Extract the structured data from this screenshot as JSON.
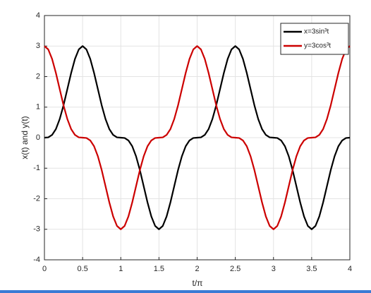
{
  "chart_data": {
    "type": "line",
    "xlabel": "t/π",
    "ylabel": "x(t) and y(t)",
    "x": [
      0,
      0.05,
      0.1,
      0.15,
      0.2,
      0.25,
      0.3,
      0.35,
      0.4,
      0.45,
      0.5,
      0.55,
      0.6,
      0.65,
      0.7,
      0.75,
      0.8,
      0.85,
      0.9,
      0.95,
      1,
      1.05,
      1.1,
      1.15,
      1.2,
      1.25,
      1.3,
      1.35,
      1.4,
      1.45,
      1.5,
      1.55,
      1.6,
      1.65,
      1.7,
      1.75,
      1.8,
      1.85,
      1.9,
      1.95,
      2,
      2.05,
      2.1,
      2.15,
      2.2,
      2.25,
      2.3,
      2.35,
      2.4,
      2.45,
      2.5,
      2.55,
      2.6,
      2.65,
      2.7,
      2.75,
      2.8,
      2.85,
      2.9,
      2.95,
      3,
      3.05,
      3.1,
      3.15,
      3.2,
      3.25,
      3.3,
      3.35,
      3.4,
      3.45,
      3.5,
      3.55,
      3.6,
      3.65,
      3.7,
      3.75,
      3.8,
      3.85,
      3.9,
      3.95,
      4
    ],
    "series": [
      {
        "name": "x=3sin³t",
        "color": "#000000",
        "values": [
          0,
          0.01,
          0.09,
          0.28,
          0.61,
          1.06,
          1.59,
          2.12,
          2.58,
          2.89,
          3,
          2.89,
          2.58,
          2.12,
          1.59,
          1.06,
          0.61,
          0.28,
          0.09,
          0.01,
          0,
          -0.01,
          -0.09,
          -0.28,
          -0.61,
          -1.06,
          -1.59,
          -2.12,
          -2.58,
          -2.89,
          -3,
          -2.89,
          -2.58,
          -2.12,
          -1.59,
          -1.06,
          -0.61,
          -0.28,
          -0.09,
          -0.01,
          0,
          0.01,
          0.09,
          0.28,
          0.61,
          1.06,
          1.59,
          2.12,
          2.58,
          2.89,
          3,
          2.89,
          2.58,
          2.12,
          1.59,
          1.06,
          0.61,
          0.28,
          0.09,
          0.01,
          0,
          -0.01,
          -0.09,
          -0.28,
          -0.61,
          -1.06,
          -1.59,
          -2.12,
          -2.58,
          -2.89,
          -3,
          -2.89,
          -2.58,
          -2.12,
          -1.59,
          -1.06,
          -0.61,
          -0.28,
          -0.09,
          -0.01,
          0
        ]
      },
      {
        "name": "y=3cos³t",
        "color": "#cc0000",
        "values": [
          3,
          2.89,
          2.58,
          2.12,
          1.59,
          1.06,
          0.61,
          0.28,
          0.09,
          0.01,
          0,
          -0.01,
          -0.09,
          -0.28,
          -0.61,
          -1.06,
          -1.59,
          -2.12,
          -2.58,
          -2.89,
          -3,
          -2.89,
          -2.58,
          -2.12,
          -1.59,
          -1.06,
          -0.61,
          -0.28,
          -0.09,
          -0.01,
          0,
          0.01,
          0.09,
          0.28,
          0.61,
          1.06,
          1.59,
          2.12,
          2.58,
          2.89,
          3,
          2.89,
          2.58,
          2.12,
          1.59,
          1.06,
          0.61,
          0.28,
          0.09,
          0.01,
          0,
          -0.01,
          -0.09,
          -0.28,
          -0.61,
          -1.06,
          -1.59,
          -2.12,
          -2.58,
          -2.89,
          -3,
          -2.89,
          -2.58,
          -2.12,
          -1.59,
          -1.06,
          -0.61,
          -0.28,
          -0.09,
          -0.01,
          0,
          0.01,
          0.09,
          0.28,
          0.61,
          1.06,
          1.59,
          2.12,
          2.58,
          2.89,
          3
        ]
      }
    ],
    "xlim": [
      0,
      4
    ],
    "xticks": [
      0,
      0.5,
      1,
      1.5,
      2,
      2.5,
      3,
      3.5,
      4
    ],
    "ylim": [
      -4,
      4
    ],
    "yticks": [
      -4,
      -3,
      -2,
      -1,
      0,
      1,
      2,
      3,
      4
    ],
    "grid": true,
    "legend": "northeast"
  }
}
